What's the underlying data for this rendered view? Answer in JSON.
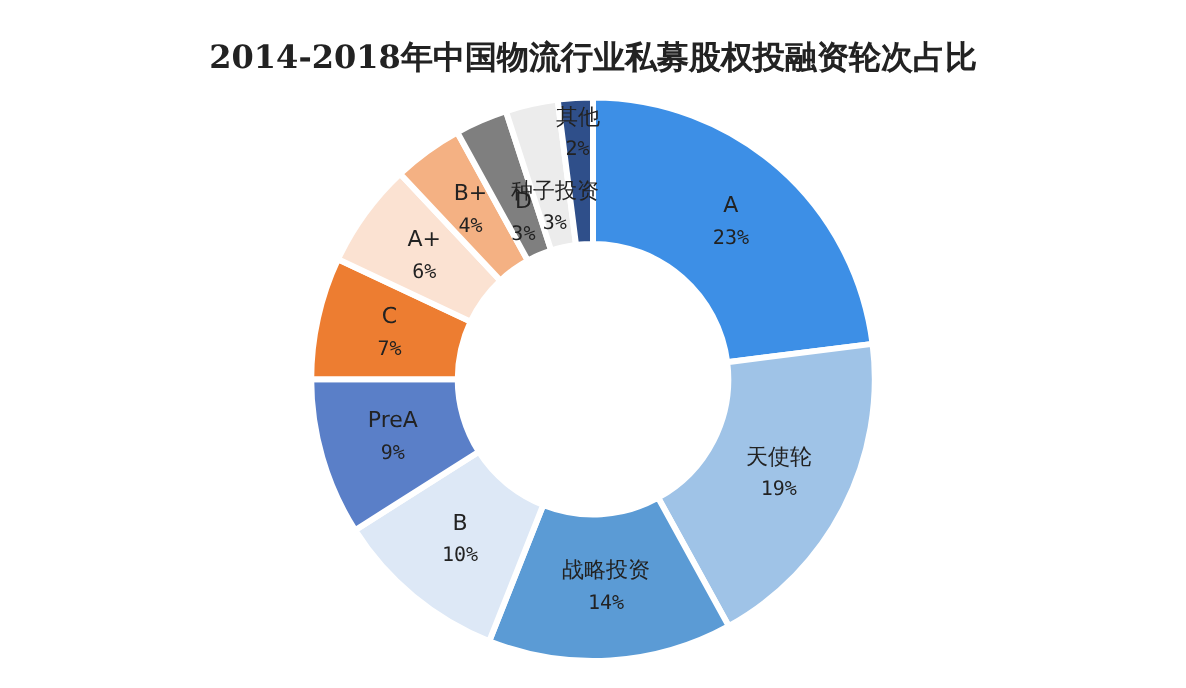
{
  "chart_data": {
    "type": "donut",
    "title": "2014-2018年中国物流行业私募股权投融资轮次占比",
    "categories": [
      "A",
      "天使轮",
      "战略投资",
      "B",
      "PreA",
      "C",
      "A+",
      "B+",
      "D",
      "种子投资",
      "其他"
    ],
    "values": [
      23,
      19,
      14,
      10,
      9,
      7,
      6,
      4,
      3,
      3,
      2
    ],
    "value_labels": [
      "23%",
      "19%",
      "14%",
      "10%",
      "9%",
      "7%",
      "6%",
      "4%",
      "3%",
      "3%",
      "2%"
    ],
    "colors": [
      "#3d8fe6",
      "#9fc3e7",
      "#5b9bd5",
      "#dde8f6",
      "#5a7fc8",
      "#ed7d31",
      "#fbe2d2",
      "#f4b183",
      "#7f7f7f",
      "#ececec",
      "#2f4f8a"
    ],
    "legend": false
  }
}
